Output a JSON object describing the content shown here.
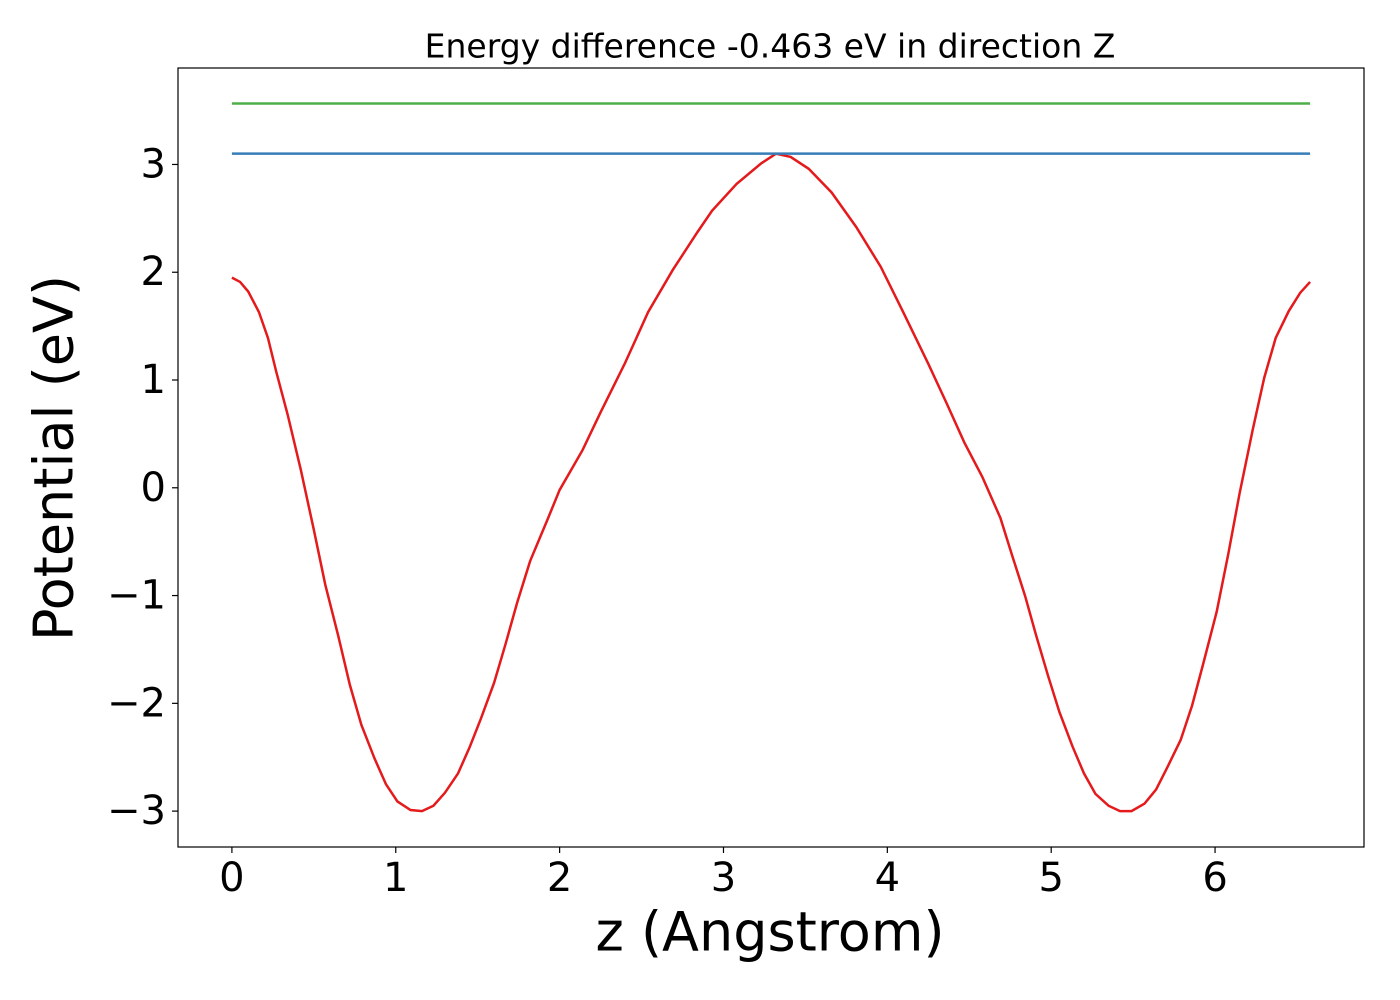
{
  "chart_data": {
    "type": "line",
    "title": "Energy difference -0.463 eV in direction Z",
    "xlabel": "z (Angstrom)",
    "ylabel": "Potential (eV)",
    "xlim": [
      -0.329,
      6.909
    ],
    "ylim": [
      -3.333,
      3.895
    ],
    "xticks": [
      0,
      1,
      2,
      3,
      4,
      5,
      6
    ],
    "yticks": [
      {
        "value": -3,
        "label": "−3"
      },
      {
        "value": -2,
        "label": "−2"
      },
      {
        "value": -1,
        "label": "−1"
      },
      0,
      1,
      2,
      3
    ],
    "grid": false,
    "series": [
      {
        "color": "#e41a1c",
        "x": [
          0,
          0.05,
          0.1,
          0.165,
          0.22,
          0.27,
          0.34,
          0.42,
          0.5,
          0.57,
          0.65,
          0.72,
          0.79,
          0.87,
          0.94,
          1.01,
          1.09,
          1.16,
          1.23,
          1.3,
          1.38,
          1.45,
          1.52,
          1.6,
          1.67,
          1.74,
          1.82,
          1.93,
          2.0,
          2.14,
          2.25,
          2.4,
          2.54,
          2.69,
          2.84,
          2.93,
          3.08,
          3.23,
          3.32,
          3.41,
          3.52,
          3.66,
          3.81,
          3.96,
          4.1,
          4.25,
          4.36,
          4.47,
          4.58,
          4.69,
          4.76,
          4.84,
          4.91,
          4.98,
          5.05,
          5.13,
          5.2,
          5.27,
          5.35,
          5.42,
          5.49,
          5.57,
          5.64,
          5.71,
          5.79,
          5.86,
          5.93,
          6.01,
          6.08,
          6.15,
          6.23,
          6.3,
          6.37,
          6.45,
          6.52,
          6.58
        ],
        "values": [
          1.95,
          1.91,
          1.82,
          1.63,
          1.39,
          1.08,
          0.68,
          0.17,
          -0.39,
          -0.9,
          -1.38,
          -1.83,
          -2.2,
          -2.51,
          -2.75,
          -2.91,
          -2.99,
          -3.0,
          -2.95,
          -2.83,
          -2.65,
          -2.41,
          -2.14,
          -1.81,
          -1.45,
          -1.07,
          -0.68,
          -0.28,
          -0.02,
          0.35,
          0.7,
          1.16,
          1.63,
          2.02,
          2.37,
          2.57,
          2.82,
          3.01,
          3.1,
          3.07,
          2.96,
          2.74,
          2.42,
          2.05,
          1.62,
          1.15,
          0.79,
          0.42,
          0.1,
          -0.28,
          -0.62,
          -1.0,
          -1.38,
          -1.74,
          -2.08,
          -2.4,
          -2.65,
          -2.84,
          -2.95,
          -3.0,
          -3.0,
          -2.93,
          -2.8,
          -2.59,
          -2.34,
          -2.02,
          -1.62,
          -1.15,
          -0.62,
          -0.05,
          0.54,
          1.02,
          1.39,
          1.64,
          1.81,
          1.91
        ]
      },
      {
        "color": "#377eb8",
        "x": [
          0,
          6.58
        ],
        "values": [
          3.1,
          3.1
        ]
      },
      {
        "color": "#4daf4a",
        "x": [
          0,
          6.58
        ],
        "values": [
          3.566,
          3.566
        ]
      }
    ]
  }
}
